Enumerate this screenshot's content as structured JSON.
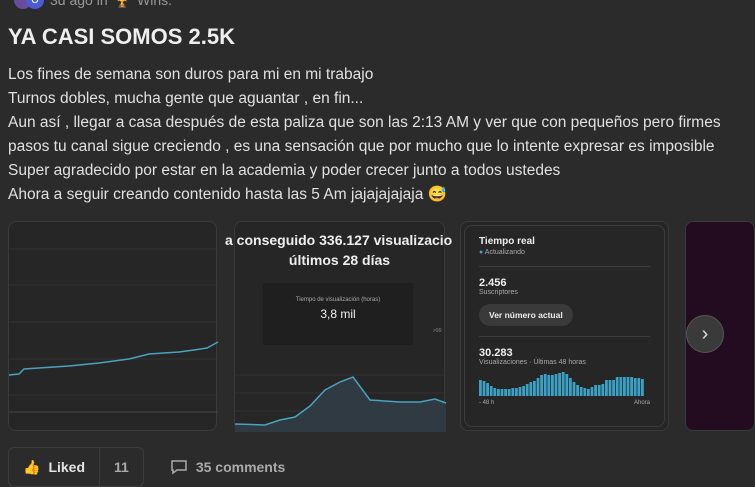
{
  "post": {
    "time": "3d ago in",
    "category_icon": "trophy-icon",
    "category": "Wins.",
    "avatar_letter": "U",
    "title": "YA CASI SOMOS 2.5K",
    "lines": [
      "Los fines de semana son duros para mi en mi trabajo",
      "Turnos dobles, mucha gente que aguantar , en fin...",
      "Aun así , llegar a casa después de esta paliza que son las 2:13 AM y ver que con pequeños pero firmes",
      "pasos tu canal sigue creciendo , es una sensación que por mucho que lo intente expresar es imposible",
      "Super agradecido por estar en la academia y poder crecer junto a todos ustedes",
      "Ahora a seguir creando contenido hasta las 5 Am jajajajajaja 😅"
    ]
  },
  "images": {
    "card2": {
      "headline1": "a conseguido 336.127 visualizacio",
      "headline2": "últimos 28 días",
      "metric_label": "Tiempo de visualización (horas)",
      "metric_value": "3,8 mil",
      "side": ">99"
    },
    "card3": {
      "title": "Tiempo real",
      "status": "Actualizando",
      "subs": "2.456",
      "subs_label": "Suscriptores",
      "button": "Ver número actual",
      "views": "30.283",
      "views_label": "Visualizaciones · Últimas 48 horas",
      "axis_start": "- 48 h",
      "axis_end": "Ahora"
    }
  },
  "footer": {
    "liked": "Liked",
    "likes": "11",
    "comments": "35 comments"
  },
  "colors": {
    "accent": "#3aa0c4",
    "bg": "#2b2b2b"
  }
}
